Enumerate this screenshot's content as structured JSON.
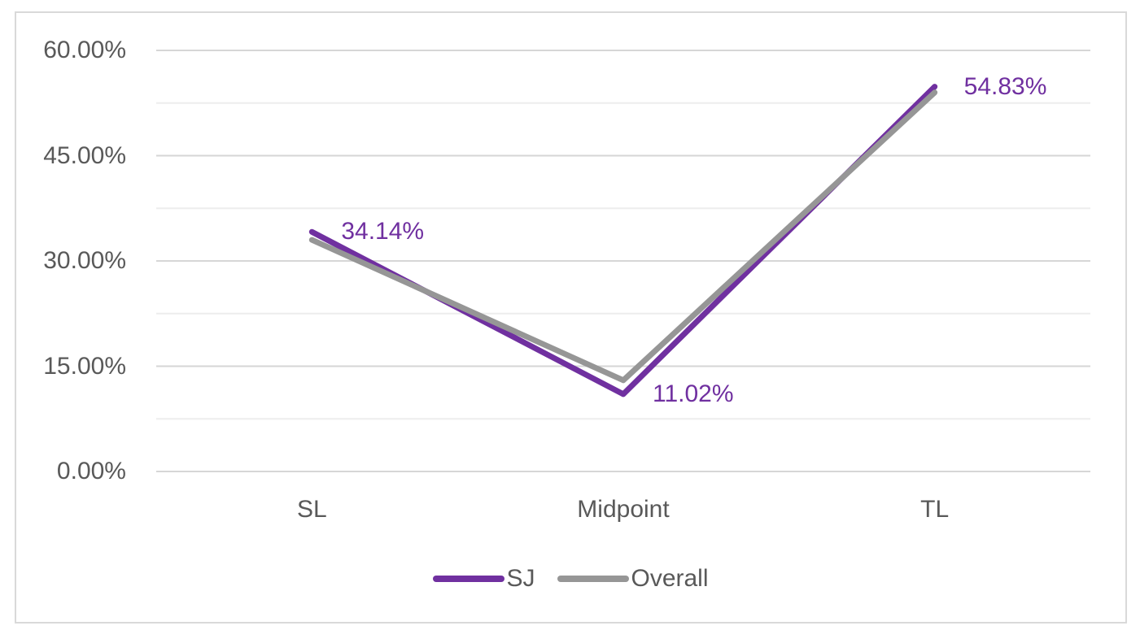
{
  "chart_data": {
    "type": "line",
    "title": "",
    "xlabel": "",
    "ylabel": "",
    "categories": [
      "SL",
      "Midpoint",
      "TL"
    ],
    "series": [
      {
        "name": "SJ",
        "color": "#7030A0",
        "values": [
          34.14,
          11.02,
          54.83
        ],
        "point_labels": [
          "34.14%",
          "11.02%",
          "54.83%"
        ]
      },
      {
        "name": "Overall",
        "color": "#969696",
        "values": [
          33.0,
          13.0,
          54.0
        ],
        "point_labels": null
      }
    ],
    "y_axis": {
      "min": 0,
      "max": 60,
      "ticks": [
        {
          "value": 60,
          "label": "60.00%"
        },
        {
          "value": 45,
          "label": "45.00%"
        },
        {
          "value": 30,
          "label": "30.00%"
        },
        {
          "value": 15,
          "label": "15.00%"
        },
        {
          "value": 0,
          "label": "0.00%"
        }
      ],
      "minor_gridlines": [
        52.5,
        37.5,
        22.5,
        7.5
      ]
    },
    "grid": "horizontal",
    "legend_position": "bottom"
  },
  "colors": {
    "background": "#FFFFFF",
    "frame_border": "#D9D9D9",
    "major_gridline": "#D6D6D6",
    "minor_gridline": "#EDEDED",
    "axis_text": "#595959",
    "sj_series": "#7030A0",
    "overall_series": "#969696"
  }
}
